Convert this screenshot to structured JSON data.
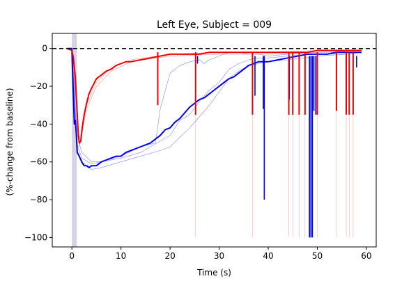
{
  "chart_data": {
    "type": "line",
    "title": "Left Eye, Subject = 009",
    "xlabel": "Time (s)",
    "ylabel": "(%-change from baseline)",
    "xlim": [
      -4,
      62
    ],
    "ylim": [
      -105,
      8
    ],
    "xticks": [
      0,
      10,
      20,
      30,
      40,
      50,
      60
    ],
    "yticks": [
      0,
      -20,
      -40,
      -60,
      -80,
      -100
    ],
    "xtick_labels": [
      "0",
      "10",
      "20",
      "30",
      "40",
      "50",
      "60"
    ],
    "ytick_labels": [
      "0",
      "−20",
      "−40",
      "−60",
      "−80",
      "−100"
    ],
    "baseline": {
      "y": 0,
      "style": "dashed",
      "color": "#000000"
    },
    "stimulus_band": {
      "x0": 0,
      "x1": 1,
      "color": "#c8c8dc"
    },
    "series": [
      {
        "color": "#0000ee",
        "width": 2,
        "x": [
          -1,
          0,
          0.1,
          0.3,
          0.5,
          0.7,
          0.9,
          1.1,
          1.5,
          2,
          2.5,
          3,
          3.5,
          4,
          5,
          6,
          7,
          8,
          9,
          10,
          11,
          12,
          14,
          16,
          18,
          19,
          20,
          21,
          22,
          23,
          24,
          25,
          26,
          27,
          28,
          29,
          30,
          31,
          32,
          33,
          34,
          35,
          36,
          37,
          38,
          39,
          40,
          42,
          44,
          46,
          48,
          50,
          52,
          54,
          56,
          58,
          59
        ],
        "y": [
          0,
          0,
          -10,
          -25,
          -40,
          -38,
          -45,
          -55,
          -57,
          -60,
          -62,
          -62,
          -63,
          -62,
          -62,
          -60,
          -59,
          -58,
          -57,
          -57,
          -55,
          -54,
          -52,
          -50,
          -46,
          -43,
          -42,
          -39,
          -37,
          -34,
          -31,
          -29,
          -27,
          -26,
          -24,
          -22,
          -20,
          -18,
          -16,
          -15,
          -13,
          -11,
          -9,
          -8,
          -7,
          -7,
          -7,
          -6,
          -5,
          -4,
          -3,
          -3,
          -3,
          -2,
          -2,
          -2,
          -2
        ]
      },
      {
        "color": "#ee0000",
        "width": 2,
        "x": [
          -1,
          0,
          0.3,
          0.7,
          1,
          1.3,
          1.5,
          1.8,
          2.1,
          2.5,
          3,
          3.5,
          4,
          5,
          6,
          7,
          8,
          9,
          10,
          11,
          12,
          14,
          16,
          18,
          20,
          22,
          24,
          26,
          28,
          30,
          32,
          34,
          36,
          38,
          40,
          42,
          44,
          46,
          48,
          50,
          52,
          54,
          56,
          58,
          59
        ],
        "y": [
          0,
          -1,
          -5,
          -15,
          -30,
          -45,
          -50,
          -49,
          -42,
          -35,
          -29,
          -24,
          -21,
          -16,
          -14,
          -12,
          -11,
          -9,
          -8,
          -7,
          -7,
          -6,
          -5,
          -4,
          -3,
          -3,
          -3,
          -3,
          -2,
          -2,
          -2,
          -2,
          -2,
          -2,
          -2,
          -2,
          -2,
          -2,
          -2,
          -1,
          -1,
          -1,
          -1,
          -1,
          -1
        ]
      }
    ],
    "individual_traces": [
      {
        "color": "#5555ff",
        "x": [
          0,
          1,
          2,
          4,
          6,
          10,
          14,
          18,
          20,
          22,
          24,
          26,
          28,
          30,
          32,
          34,
          36,
          38,
          40,
          44,
          50,
          56,
          59
        ],
        "y": [
          0,
          -50,
          -58,
          -61,
          -60,
          -58,
          -55,
          -49,
          -46,
          -38,
          -35,
          -28,
          -22,
          -18,
          -11,
          -8,
          -6,
          -5,
          -5,
          -4,
          -3,
          -3,
          -2
        ]
      },
      {
        "color": "#5555ff",
        "x": [
          0,
          1,
          2,
          4,
          6,
          10,
          14,
          18,
          20,
          22,
          24,
          26,
          28,
          30,
          32,
          34,
          36,
          38,
          40,
          44,
          50,
          56,
          59
        ],
        "y": [
          0,
          -55,
          -60,
          -64,
          -63,
          -60,
          -57,
          -54,
          -52,
          -47,
          -42,
          -36,
          -30,
          -23,
          -16,
          -12,
          -9,
          -8,
          -7,
          -6,
          -4,
          -3,
          -2
        ]
      },
      {
        "color": "#5555ff",
        "x": [
          0,
          1,
          2,
          4,
          6,
          10,
          14,
          17,
          18,
          20,
          22,
          24,
          26,
          27,
          28,
          30,
          32,
          34,
          36,
          38,
          40,
          44,
          50,
          56,
          59
        ],
        "y": [
          0,
          -45,
          -55,
          -60,
          -60,
          -57,
          -52,
          -50,
          -32,
          -13,
          -9,
          -7,
          -6,
          -8,
          -6,
          -4,
          -2,
          -2,
          -3,
          -3,
          -4,
          -3,
          -2,
          -2,
          -2
        ]
      },
      {
        "color": "#ff6666",
        "x": [
          0,
          1,
          1.5,
          2,
          3,
          5,
          8,
          12,
          20,
          30,
          40,
          50,
          59
        ],
        "y": [
          0,
          -30,
          -48,
          -44,
          -30,
          -18,
          -10,
          -6,
          -3,
          -2,
          -2,
          -1,
          -1
        ]
      },
      {
        "color": "#ff6666",
        "x": [
          0,
          1,
          1.5,
          2,
          3,
          5,
          8,
          12,
          20,
          30,
          40,
          50,
          59
        ],
        "y": [
          0,
          -34,
          -52,
          -46,
          -32,
          -20,
          -12,
          -7,
          -4,
          -3,
          -3,
          -2,
          -1
        ]
      }
    ],
    "blue_spikes": [
      {
        "x": 25.6,
        "y": -8
      },
      {
        "x": 37.3,
        "y": -25
      },
      {
        "x": 39.0,
        "y": -32
      },
      {
        "x": 39.2,
        "y": -80
      },
      {
        "x": 44.3,
        "y": -27
      },
      {
        "x": 48.4,
        "y": -100
      },
      {
        "x": 48.7,
        "y": -100
      },
      {
        "x": 49.0,
        "y": -100
      },
      {
        "x": 49.3,
        "y": -33
      },
      {
        "x": 49.7,
        "y": -35
      },
      {
        "x": 58.0,
        "y": -10
      }
    ],
    "red_spikes": [
      {
        "x": 17.5,
        "y": -30
      },
      {
        "x": 25.2,
        "y": -35
      },
      {
        "x": 36.8,
        "y": -35
      },
      {
        "x": 44.2,
        "y": -35
      },
      {
        "x": 45.0,
        "y": -35
      },
      {
        "x": 46.3,
        "y": -35
      },
      {
        "x": 47.5,
        "y": -35
      },
      {
        "x": 50.0,
        "y": -35
      },
      {
        "x": 53.9,
        "y": -33
      },
      {
        "x": 55.9,
        "y": -35
      },
      {
        "x": 56.5,
        "y": -35
      },
      {
        "x": 57.3,
        "y": -35
      }
    ],
    "faint_red_spikes": [
      {
        "x": 25.2,
        "y": -100
      },
      {
        "x": 36.8,
        "y": -100
      },
      {
        "x": 44.2,
        "y": -100
      },
      {
        "x": 45.0,
        "y": -100
      },
      {
        "x": 46.3,
        "y": -100
      },
      {
        "x": 47.5,
        "y": -100
      },
      {
        "x": 50.0,
        "y": -100
      },
      {
        "x": 53.9,
        "y": -100
      },
      {
        "x": 55.9,
        "y": -100
      },
      {
        "x": 56.5,
        "y": -100
      },
      {
        "x": 57.3,
        "y": -100
      }
    ]
  }
}
